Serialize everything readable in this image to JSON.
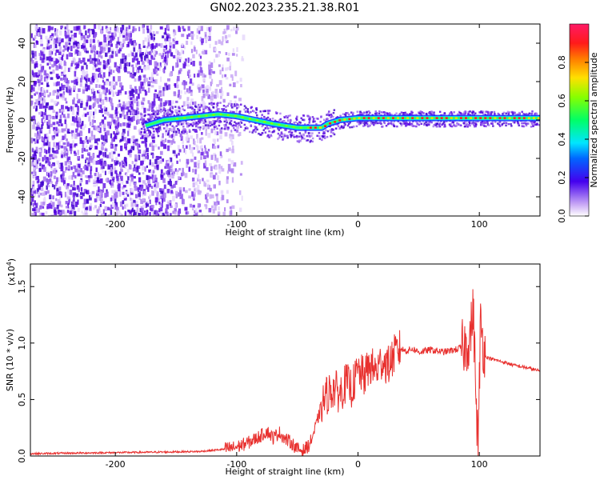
{
  "title": "GN02.2023.235.21.38.R01",
  "colors": {
    "snr_line": "#e8302e",
    "axis": "#000000"
  },
  "chart_data": [
    {
      "type": "heatmap",
      "xlabel": "Height of straight line (km)",
      "ylabel": "Frequency (Hz)",
      "xlim": [
        -270,
        150
      ],
      "ylim": [
        -50,
        50
      ],
      "x_ticks": [
        -200,
        -100,
        0,
        100
      ],
      "y_ticks": [
        -40,
        -20,
        0,
        20,
        40
      ],
      "colorbar": {
        "label": "Normalized spectral amplitude",
        "range": [
          0,
          1
        ],
        "ticks": [
          "0.0",
          "0.2",
          "0.4",
          "0.6",
          "0.8"
        ]
      },
      "ridge": {
        "x": [
          -175,
          -160,
          -145,
          -130,
          -115,
          -100,
          -85,
          -70,
          -60,
          -50,
          -40,
          -30,
          -25,
          -15,
          0,
          20,
          50,
          80,
          95,
          100,
          120,
          150
        ],
        "y": [
          -3,
          0,
          1,
          2,
          3,
          2,
          0,
          -2,
          -3,
          -4,
          -4,
          -4,
          -2,
          0,
          1,
          1,
          1,
          1,
          1,
          1,
          1,
          1
        ]
      }
    },
    {
      "type": "line",
      "xlabel": "Height of straight line (km)",
      "ylabel": "SNR (10 * v/v)",
      "multiplier": "(x10",
      "multiplier_exp": "4",
      "xlim": [
        -270,
        150
      ],
      "ylim": [
        0,
        17000
      ],
      "x_ticks": [
        -200,
        -100,
        0,
        100
      ],
      "y_ticks": [
        "0.0",
        "0.5",
        "1.0",
        "1.5"
      ],
      "series": [
        {
          "x": [
            -270,
            -240,
            -200,
            -160,
            -130,
            -110,
            -100,
            -90,
            -80,
            -75,
            -70,
            -65,
            -60,
            -55,
            -50,
            -45,
            -40,
            -35,
            -30,
            -25,
            -20,
            -15,
            -10,
            -5,
            0,
            5,
            10,
            15,
            20,
            25,
            30,
            35,
            40,
            45,
            50,
            60,
            70,
            80,
            85,
            90,
            93,
            95,
            97,
            99,
            101,
            103,
            105,
            110,
            120,
            130,
            140,
            150
          ],
          "y": [
            200,
            250,
            300,
            350,
            400,
            600,
            800,
            1200,
            1800,
            2200,
            1600,
            2100,
            1500,
            1200,
            600,
            500,
            1000,
            2500,
            4500,
            5500,
            6000,
            5500,
            6500,
            6000,
            7500,
            7000,
            8000,
            7500,
            8500,
            8000,
            9000,
            9500,
            9300,
            9500,
            9200,
            9400,
            9200,
            9400,
            9600,
            9800,
            11000,
            13000,
            6000,
            500,
            12000,
            10000,
            8800,
            8600,
            8300,
            8000,
            7800,
            7500
          ]
        }
      ]
    }
  ]
}
